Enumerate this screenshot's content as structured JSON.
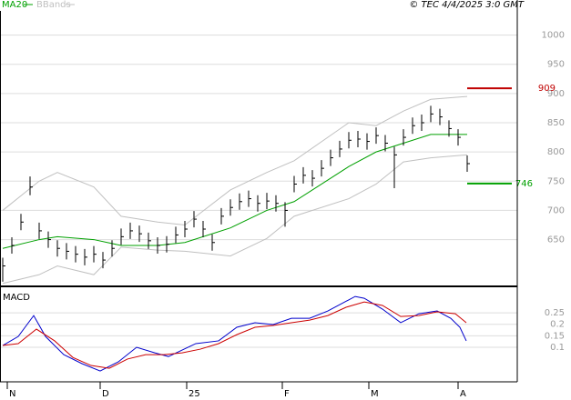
{
  "header": {
    "legend": [
      {
        "name": "MA20",
        "color": "#00a000"
      },
      {
        "name": "BBands",
        "color": "#c0c0c0"
      }
    ],
    "source": "© TEC 4/4/2025 3:0 GMT"
  },
  "chart_data": [
    {
      "type": "ohlc",
      "ylim": [
        570,
        1060
      ],
      "yticks": [
        650,
        700,
        750,
        800,
        850,
        900,
        950,
        1000
      ],
      "grid": true,
      "xlim": [
        -0.3,
        56.5
      ],
      "xticks": [
        {
          "value": 0.5,
          "label": "N"
        },
        {
          "value": 10.7,
          "label": "D"
        },
        {
          "value": 20.2,
          "label": "25"
        },
        {
          "value": 30.7,
          "label": "F"
        },
        {
          "value": 40.2,
          "label": "M"
        },
        {
          "value": 50,
          "label": "A"
        }
      ],
      "bars": {
        "color": "#000000",
        "close": [
          605,
          640,
          680,
          740,
          665,
          650,
          635,
          630,
          625,
          620,
          625,
          615,
          635,
          655,
          665,
          660,
          648,
          640,
          642,
          658,
          668,
          685,
          668,
          645,
          690,
          705,
          715,
          720,
          712,
          716,
          712,
          700,
          745,
          760,
          755,
          772,
          790,
          805,
          820,
          822,
          818,
          828,
          815,
          795,
          825,
          845,
          850,
          865,
          860,
          840,
          825,
          780
        ],
        "high": [
          619,
          654,
          694,
          758,
          679,
          664,
          649,
          644,
          639,
          634,
          639,
          629,
          649,
          669,
          679,
          674,
          662,
          654,
          656,
          672,
          682,
          699,
          682,
          659,
          704,
          719,
          729,
          734,
          726,
          730,
          726,
          714,
          759,
          774,
          769,
          786,
          804,
          819,
          834,
          836,
          832,
          842,
          829,
          809,
          839,
          859,
          864,
          879,
          874,
          854,
          839,
          794
        ],
        "low": [
          578,
          626,
          666,
          726,
          651,
          636,
          621,
          616,
          611,
          606,
          611,
          601,
          621,
          641,
          651,
          646,
          634,
          626,
          628,
          644,
          654,
          671,
          654,
          631,
          676,
          691,
          701,
          706,
          698,
          702,
          698,
          672,
          731,
          746,
          741,
          758,
          776,
          791,
          806,
          808,
          804,
          814,
          801,
          738,
          811,
          831,
          836,
          851,
          846,
          826,
          811,
          766
        ]
      },
      "ma": {
        "color": "#00a000",
        "x": [
          0,
          4,
          6,
          10,
          13,
          17,
          20,
          25,
          29,
          32,
          38,
          41,
          44,
          47,
          51
        ],
        "values": [
          635,
          650,
          655,
          650,
          640,
          640,
          645,
          670,
          700,
          715,
          775,
          800,
          815,
          830,
          830
        ]
      },
      "bands": {
        "color": "#c0c0c0",
        "x": [
          0,
          4,
          6,
          10,
          13,
          17,
          20,
          25,
          29,
          32,
          38,
          41,
          44,
          47,
          51
        ],
        "upper": [
          700,
          750,
          765,
          740,
          690,
          680,
          675,
          735,
          765,
          785,
          850,
          845,
          870,
          890,
          895
        ],
        "lower": [
          575,
          590,
          605,
          590,
          637,
          632,
          630,
          622,
          652,
          690,
          720,
          745,
          783,
          790,
          795
        ]
      },
      "annotations": [
        {
          "value": 909,
          "color": "#c00000"
        },
        {
          "value": 746,
          "color": "#00a000"
        }
      ]
    },
    {
      "type": "line",
      "title": "MACD",
      "ylim": [
        -0.05,
        0.353
      ],
      "yticks": [
        0.1,
        0.15,
        0.2,
        0.25
      ],
      "series": [
        {
          "color": "#0000cc",
          "x": [
            0,
            1.7,
            3.4,
            4.7,
            6.7,
            8.7,
            10.7,
            12.7,
            14.7,
            16.7,
            18.2,
            19.7,
            21.2,
            23.7,
            25.7,
            27.7,
            29.7,
            31.7,
            33.7,
            35.7,
            38.7,
            39.7,
            41.7,
            43.7,
            45.7,
            47.7,
            49.2,
            50.2,
            50.9
          ],
          "values": [
            0.108,
            0.147,
            0.238,
            0.147,
            0.068,
            0.029,
            -0.003,
            0.037,
            0.1,
            0.076,
            0.06,
            0.088,
            0.116,
            0.128,
            0.187,
            0.207,
            0.199,
            0.226,
            0.226,
            0.258,
            0.321,
            0.313,
            0.266,
            0.207,
            0.246,
            0.258,
            0.226,
            0.187,
            0.128
          ]
        },
        {
          "color": "#cc0000",
          "x": [
            0,
            1.7,
            3.7,
            5.7,
            7.7,
            9.7,
            11.7,
            13.7,
            15.7,
            17.7,
            19.7,
            21.7,
            23.7,
            25.7,
            27.7,
            29.7,
            31.7,
            33.7,
            35.7,
            37.7,
            39.7,
            41.7,
            43.7,
            45.7,
            47.7,
            49.7,
            50.9
          ],
          "values": [
            0.108,
            0.116,
            0.179,
            0.128,
            0.056,
            0.021,
            0.009,
            0.049,
            0.068,
            0.068,
            0.076,
            0.092,
            0.116,
            0.155,
            0.187,
            0.195,
            0.207,
            0.218,
            0.238,
            0.274,
            0.297,
            0.282,
            0.234,
            0.238,
            0.254,
            0.246,
            0.207
          ]
        }
      ]
    }
  ]
}
